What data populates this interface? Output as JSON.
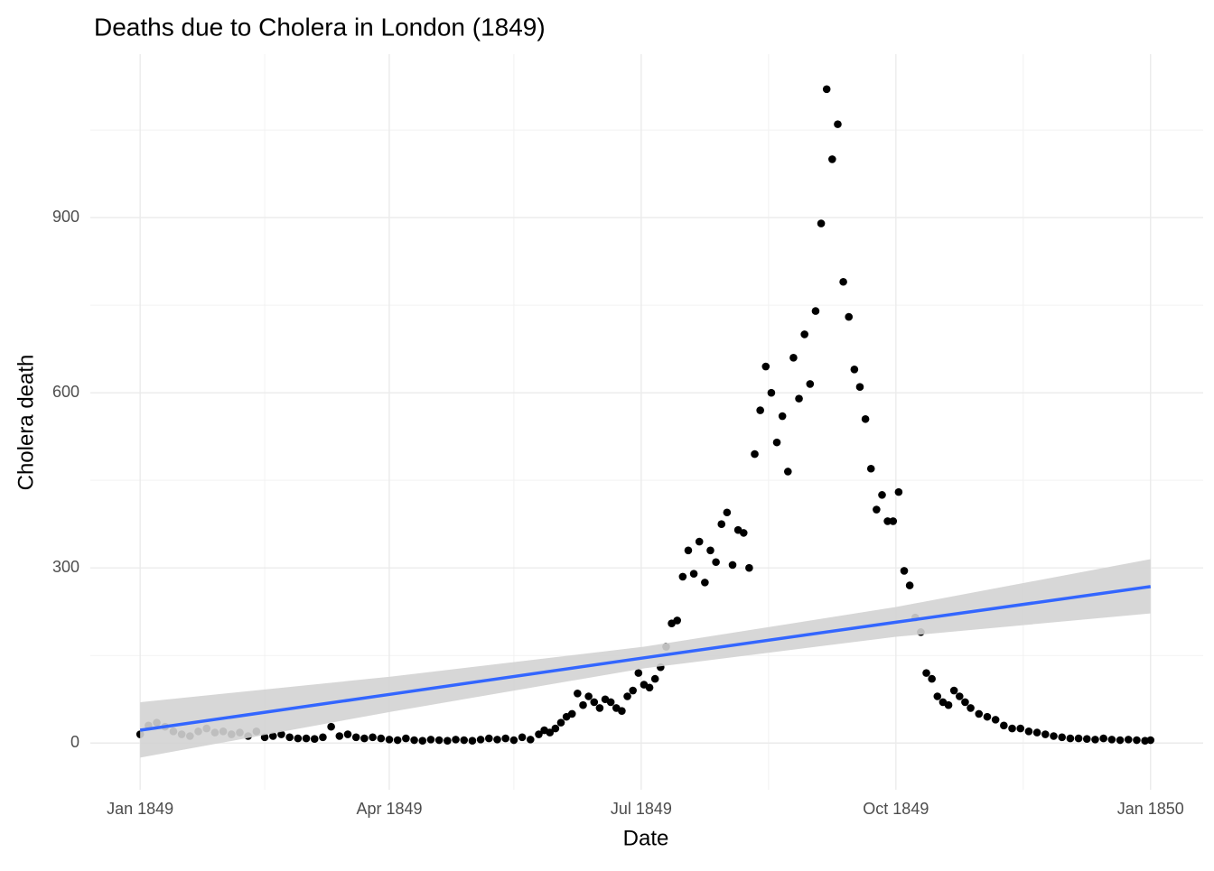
{
  "chart_data": {
    "type": "scatter",
    "title": "Deaths due to Cholera in London (1849)",
    "x_label": "Date",
    "y_label": "Cholera death",
    "color": "#000000",
    "x": [
      0,
      3,
      6,
      9,
      12,
      15,
      18,
      21,
      24,
      27,
      30,
      33,
      36,
      39,
      42,
      45,
      48,
      51,
      54,
      57,
      60,
      63,
      66,
      69,
      72,
      75,
      78,
      81,
      84,
      87,
      90,
      93,
      96,
      99,
      102,
      105,
      108,
      111,
      114,
      117,
      120,
      123,
      126,
      129,
      132,
      135,
      138,
      141,
      144,
      146,
      148,
      150,
      152,
      154,
      156,
      158,
      160,
      162,
      164,
      166,
      168,
      170,
      172,
      174,
      176,
      178,
      180,
      182,
      184,
      186,
      188,
      190,
      192,
      194,
      196,
      198,
      200,
      202,
      204,
      206,
      208,
      210,
      212,
      214,
      216,
      218,
      220,
      222,
      224,
      226,
      228,
      230,
      232,
      234,
      236,
      238,
      240,
      242,
      244,
      246,
      248,
      250,
      252,
      254,
      256,
      258,
      260,
      262,
      264,
      266,
      268,
      270,
      272,
      274,
      276,
      278,
      280,
      282,
      284,
      286,
      288,
      290,
      292,
      294,
      296,
      298,
      300,
      303,
      306,
      309,
      312,
      315,
      318,
      321,
      324,
      327,
      330,
      333,
      336,
      339,
      342,
      345,
      348,
      351,
      354,
      357,
      360,
      363,
      365
    ],
    "values": [
      15,
      30,
      35,
      28,
      20,
      15,
      12,
      20,
      25,
      18,
      20,
      15,
      18,
      12,
      20,
      10,
      12,
      15,
      10,
      8,
      8,
      7,
      10,
      28,
      12,
      15,
      10,
      8,
      10,
      8,
      6,
      5,
      8,
      5,
      4,
      6,
      5,
      4,
      6,
      5,
      4,
      6,
      8,
      6,
      8,
      5,
      10,
      6,
      15,
      22,
      18,
      25,
      35,
      45,
      50,
      85,
      65,
      80,
      70,
      60,
      75,
      70,
      60,
      55,
      80,
      90,
      120,
      100,
      95,
      110,
      130,
      165,
      205,
      210,
      285,
      330,
      290,
      345,
      275,
      330,
      310,
      375,
      395,
      305,
      365,
      360,
      300,
      495,
      570,
      645,
      600,
      515,
      560,
      465,
      660,
      590,
      700,
      615,
      740,
      890,
      1120,
      1000,
      1060,
      790,
      730,
      640,
      610,
      555,
      470,
      400,
      425,
      380,
      380,
      430,
      295,
      270,
      215,
      190,
      120,
      110,
      80,
      70,
      65,
      90,
      80,
      70,
      60,
      50,
      45,
      40,
      30,
      25,
      25,
      20,
      18,
      15,
      12,
      10,
      8,
      8,
      7,
      6,
      8,
      6,
      5,
      6,
      5,
      4,
      5
    ],
    "fit": {
      "color": "#3366ff",
      "band_color": "#d3d3d3",
      "x": [
        0,
        91,
        182,
        273,
        365
      ],
      "values": [
        22,
        84,
        146,
        207,
        268
      ],
      "lower": [
        -25,
        54,
        128,
        182,
        222
      ],
      "upper": [
        70,
        114,
        165,
        233,
        315
      ]
    },
    "xlim": [
      -18,
      384
    ],
    "xticks": [
      {
        "value": 0,
        "label": "Jan 1849"
      },
      {
        "value": 90,
        "label": "Apr 1849"
      },
      {
        "value": 181,
        "label": "Jul 1849"
      },
      {
        "value": 273,
        "label": "Oct 1849"
      },
      {
        "value": 365,
        "label": "Jan 1850"
      }
    ],
    "xminorticks": [
      45,
      135,
      227,
      319
    ],
    "ylim": [
      -80,
      1180
    ],
    "yticks": [
      0,
      300,
      600,
      900
    ],
    "yminorticks": [
      150,
      450,
      750,
      1050
    ],
    "grid": true
  }
}
